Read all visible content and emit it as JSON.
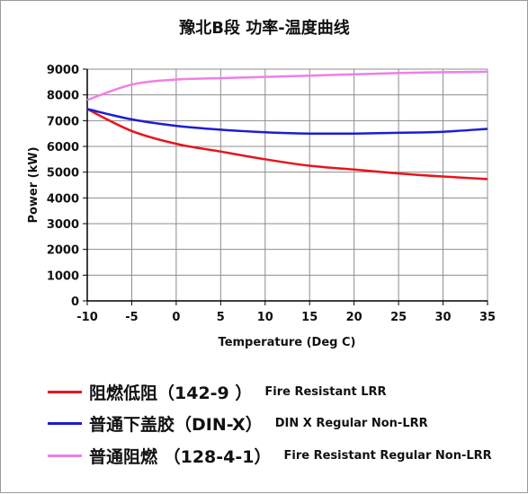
{
  "chart_data": {
    "type": "line",
    "title": "豫北B段 功率-温度曲线",
    "xlabel": "Temperature (Deg C)",
    "ylabel": "Power (kW)",
    "xlim": [
      -10,
      35
    ],
    "ylim": [
      0,
      9000
    ],
    "xticks": [
      "-10",
      "-5",
      "0",
      "5",
      "10",
      "15",
      "20",
      "25",
      "30",
      "35"
    ],
    "yticks": [
      "0",
      "1000",
      "2000",
      "3000",
      "4000",
      "5000",
      "6000",
      "7000",
      "8000",
      "9000"
    ],
    "grid": true,
    "legend_position": "bottom",
    "series": [
      {
        "name": "阻燃低阻（142-9 ）",
        "name_en": "Fire Resistant LRR",
        "color": "#e8141c",
        "x": [
          -10,
          -5,
          0,
          5,
          10,
          15,
          20,
          25,
          30,
          35
        ],
        "y": [
          7450,
          6600,
          6100,
          5800,
          5500,
          5250,
          5100,
          4950,
          4830,
          4730
        ]
      },
      {
        "name": "普通下盖胶（DIN-X）",
        "name_en": "DIN X Regular Non-LRR",
        "color": "#1c1cd4",
        "x": [
          -10,
          -5,
          0,
          5,
          10,
          15,
          20,
          25,
          30,
          35
        ],
        "y": [
          7450,
          7050,
          6800,
          6650,
          6550,
          6500,
          6500,
          6530,
          6570,
          6680
        ]
      },
      {
        "name": "普通阻燃 （128-4-1）",
        "name_en": "Fire Resistant Regular Non-LRR",
        "color": "#f07ee8",
        "x": [
          -10,
          -5,
          0,
          5,
          10,
          15,
          20,
          25,
          30,
          35
        ],
        "y": [
          7800,
          8400,
          8600,
          8650,
          8700,
          8750,
          8800,
          8850,
          8880,
          8900
        ]
      }
    ]
  }
}
